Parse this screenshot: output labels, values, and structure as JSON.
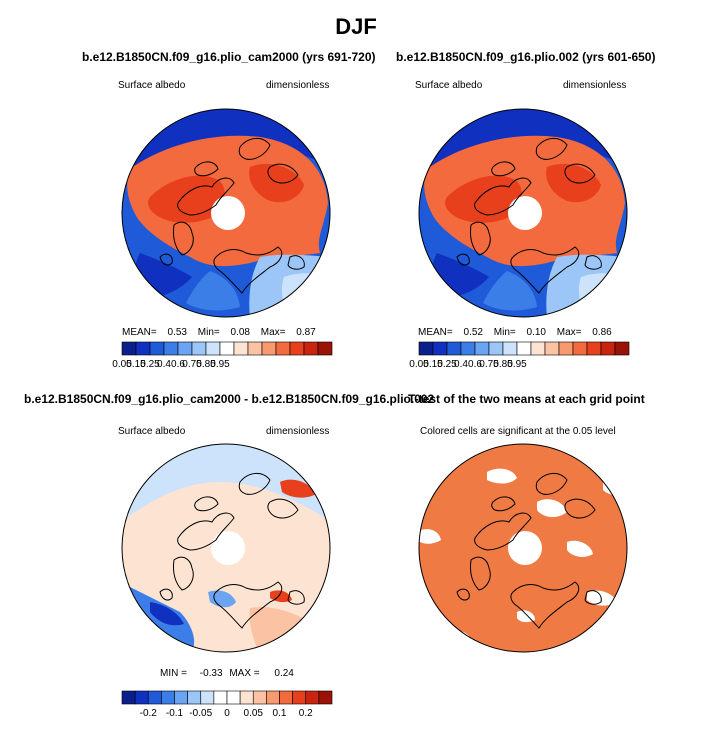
{
  "figure_title": "DJF",
  "colors": {
    "scale_abs": [
      "#0b1f8c",
      "#1030c0",
      "#1f5ad8",
      "#3c7ee8",
      "#6aa4f2",
      "#9cc6f8",
      "#cde3fb",
      "#ffffff",
      "#fde4d2",
      "#fbc3a3",
      "#f79a70",
      "#f26a3e",
      "#e8401c",
      "#c92410",
      "#9a1208"
    ],
    "scale_diff": [
      "#0b1f8c",
      "#1030c0",
      "#1f5ad8",
      "#3c7ee8",
      "#6aa4f2",
      "#9cc6f8",
      "#cde3fb",
      "#ffffff",
      "#ffffff",
      "#fde4d2",
      "#fbc3a3",
      "#f79a70",
      "#f26a3e",
      "#e8401c",
      "#c92410",
      "#9a1208"
    ],
    "coast": "#000000",
    "sig_fill": "#f07a44"
  },
  "panels": [
    {
      "title": "b.e12.B1850CN.f09_g16.plio_cam2000 (yrs 691-720)",
      "left_label": "Surface albedo",
      "right_label": "dimensionless",
      "stats": {
        "mean_label": "MEAN=",
        "mean": "0.53",
        "min_label": "Min=",
        "min": "0.08",
        "max_label": "Max=",
        "max": "0.87"
      },
      "colorbar_labels": [
        "0.05",
        "0.15",
        "0.25",
        "0.4",
        "0.6",
        "0.75",
        "0.85",
        "0.95"
      ]
    },
    {
      "title": "b.e12.B1850CN.f09_g16.plio.002 (yrs 601-650)",
      "left_label": "Surface albedo",
      "right_label": "dimensionless",
      "stats": {
        "mean_label": "MEAN=",
        "mean": "0.52",
        "min_label": "Min=",
        "min": "0.10",
        "max_label": "Max=",
        "max": "0.86"
      },
      "colorbar_labels": [
        "0.05",
        "0.15",
        "0.25",
        "0.4",
        "0.6",
        "0.75",
        "0.85",
        "0.95"
      ]
    },
    {
      "title": "b.e12.B1850CN.f09_g16.plio_cam2000 - b.e12.B1850CN.f09_g16.plio.002",
      "left_label": "Surface albedo",
      "right_label": "dimensionless",
      "stats": {
        "min_label": "MIN =",
        "min": "-0.33",
        "max_label": "MAX =",
        "max": "0.24"
      },
      "colorbar_labels": [
        "-0.2",
        "-0.1",
        "-0.05",
        "0",
        "0.05",
        "0.1",
        "0.2"
      ]
    },
    {
      "title": "T-test of the two means at each grid point",
      "subtitle": "Colored cells are significant at the 0.05 level"
    }
  ],
  "chart_data": [
    {
      "type": "heatmap",
      "title": "b.e12.B1850CN.f09_g16.plio_cam2000 (yrs 691-720)",
      "projection": "north polar stereographic",
      "variable": "Surface albedo",
      "units": "dimensionless",
      "mean": 0.53,
      "min": 0.08,
      "max": 0.87,
      "levels": [
        0.05,
        0.1,
        0.15,
        0.2,
        0.25,
        0.3,
        0.4,
        0.5,
        0.6,
        0.7,
        0.75,
        0.8,
        0.85,
        0.9,
        0.95
      ]
    },
    {
      "type": "heatmap",
      "title": "b.e12.B1850CN.f09_g16.plio.002 (yrs 601-650)",
      "projection": "north polar stereographic",
      "variable": "Surface albedo",
      "units": "dimensionless",
      "mean": 0.52,
      "min": 0.1,
      "max": 0.86,
      "levels": [
        0.05,
        0.1,
        0.15,
        0.2,
        0.25,
        0.3,
        0.4,
        0.5,
        0.6,
        0.7,
        0.75,
        0.8,
        0.85,
        0.9,
        0.95
      ]
    },
    {
      "type": "heatmap",
      "title": "b.e12.B1850CN.f09_g16.plio_cam2000 - b.e12.B1850CN.f09_g16.plio.002",
      "projection": "north polar stereographic",
      "variable": "Surface albedo",
      "units": "dimensionless",
      "min": -0.33,
      "max": 0.24,
      "levels": [
        -0.2,
        -0.15,
        -0.1,
        -0.07,
        -0.05,
        -0.03,
        -0.01,
        0,
        0.01,
        0.03,
        0.05,
        0.07,
        0.1,
        0.15,
        0.2
      ]
    },
    {
      "type": "heatmap",
      "title": "T-test of the two means at each grid point",
      "projection": "north polar stereographic",
      "note": "Colored cells are significant at the 0.05 level"
    }
  ]
}
